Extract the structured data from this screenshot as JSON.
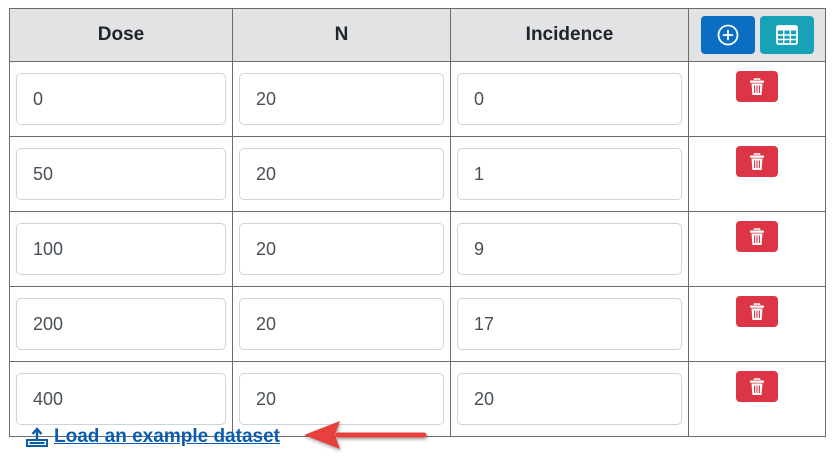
{
  "table": {
    "headers": {
      "dose": "Dose",
      "n": "N",
      "incidence": "Incidence"
    },
    "rows": [
      {
        "dose": "0",
        "n": "20",
        "incidence": "0"
      },
      {
        "dose": "50",
        "n": "20",
        "incidence": "1"
      },
      {
        "dose": "100",
        "n": "20",
        "incidence": "9"
      },
      {
        "dose": "200",
        "n": "20",
        "incidence": "17"
      },
      {
        "dose": "400",
        "n": "20",
        "incidence": "20"
      }
    ]
  },
  "icons": {
    "add_row": "plus-circle-icon",
    "table": "table-icon",
    "delete": "trash-icon",
    "upload": "upload-icon",
    "annotation_arrow": "arrow-left-icon"
  },
  "colors": {
    "add_button": "#0a6fc2",
    "table_button": "#17a2b8",
    "delete_button": "#dc3545",
    "link": "#0b5cad",
    "arrow": "#e8413c"
  },
  "load_link": {
    "label": "Load an example dataset"
  }
}
